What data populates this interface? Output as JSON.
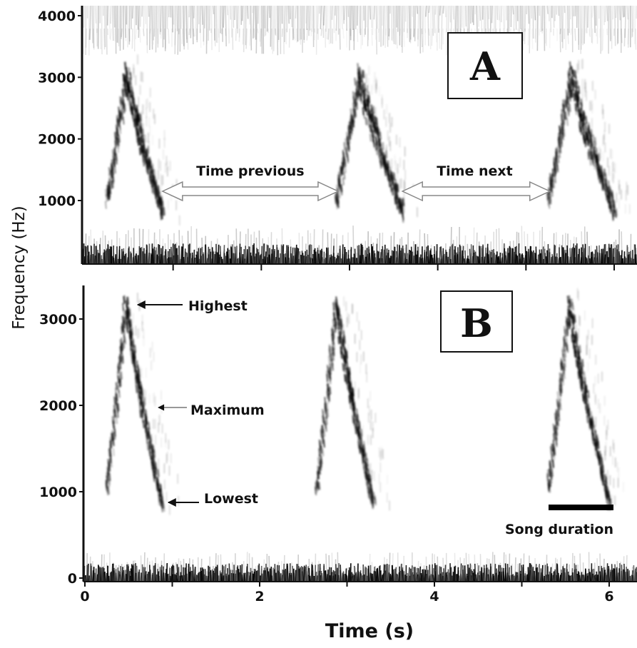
{
  "chart_data": {
    "type": "heatmap",
    "subtype": "spectrogram",
    "ylabel": "Frequency (Hz)",
    "xlabel": "Time (s)",
    "xlim": [
      0,
      6.3
    ],
    "x_ticks": [
      0,
      2,
      4,
      6
    ],
    "x_tick_labels": [
      "0",
      "2",
      "4",
      "6"
    ],
    "colormap": "grayscale (white = low energy, black = high energy)",
    "panels": [
      {
        "label": "A",
        "ylim": [
          150,
          4100
        ],
        "y_ticks": [
          1000,
          2000,
          3000,
          4000
        ],
        "y_tick_labels": [
          "1000",
          "2000",
          "3000",
          "4000"
        ],
        "songs": [
          {
            "start": 0.25,
            "end": 0.88,
            "low_hz": 900,
            "high_hz": 3150
          },
          {
            "start": 2.85,
            "end": 3.6,
            "low_hz": 900,
            "high_hz": 3150
          },
          {
            "start": 5.25,
            "end": 6.0,
            "low_hz": 900,
            "high_hz": 3150
          }
        ],
        "annotations": [
          {
            "text": "Time previous",
            "from": 0.88,
            "to": 2.87,
            "y": 1100
          },
          {
            "text": "Time next",
            "from": 3.6,
            "to": 5.27,
            "y": 1100
          }
        ]
      },
      {
        "label": "B",
        "ylim": [
          0,
          3400
        ],
        "y_ticks": [
          0,
          1000,
          2000,
          3000
        ],
        "y_tick_labels": [
          "0",
          "1000",
          "2000",
          "3000"
        ],
        "songs": [
          {
            "start": 0.25,
            "end": 0.88,
            "low_hz": 900,
            "high_hz": 3250
          },
          {
            "start": 2.65,
            "end": 3.3,
            "low_hz": 900,
            "high_hz": 3250
          },
          {
            "start": 5.3,
            "end": 6.0,
            "low_hz": 900,
            "high_hz": 3250
          }
        ],
        "annotations": [
          {
            "text": "Highest",
            "x": 0.62,
            "y": 3160
          },
          {
            "text": "Maximum",
            "x": 0.87,
            "y": 1990
          },
          {
            "text": "Lowest",
            "x": 0.95,
            "y": 870
          },
          {
            "text": "Song duration",
            "from": 5.3,
            "to": 6.05,
            "y": 820
          }
        ]
      }
    ]
  }
}
